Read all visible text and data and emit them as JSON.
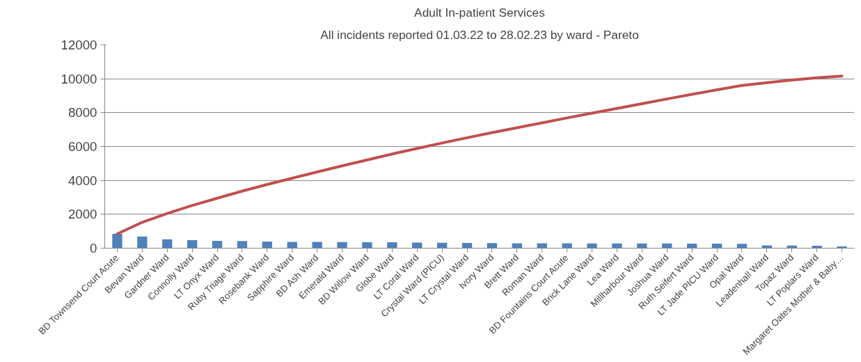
{
  "chart_data": {
    "type": "bar",
    "title": "Adult In-patient Services",
    "subtitle": "All incidents reported 01.03.22 to 28.02.23 by ward - Pareto",
    "categories": [
      "BD Townsend Court Acute",
      "Bevan Ward",
      "Gardner Ward",
      "Connolly Ward",
      "LT Onyx Ward",
      "Ruby Triage Ward",
      "Rosebank Ward",
      "Sapphire Ward",
      "BD Ash Ward",
      "Emerald Ward",
      "BD Willow Ward",
      "Globe Ward",
      "LT Coral Ward",
      "Crystal Ward (PICU)",
      "LT Crystal Ward",
      "Ivory Ward",
      "Brett Ward",
      "Roman Ward",
      "BD Fountains Court Acute",
      "Brick Lane Ward",
      "Lea Ward",
      "Millharbour Ward",
      "Joshua Ward",
      "Ruth Seifert Ward",
      "LT Jade PICU Ward",
      "Opal Ward",
      "Leadenhall Ward",
      "Topaz Ward",
      "LT Poplars Ward",
      "Margaret Oates Mother & Baby…"
    ],
    "series": [
      {
        "color": "#4f81bd",
        "values": [
          840,
          690,
          520,
          470,
          430,
          420,
          390,
          370,
          370,
          360,
          350,
          350,
          330,
          320,
          310,
          300,
          290,
          290,
          290,
          280,
          280,
          280,
          280,
          270,
          270,
          260,
          160,
          150,
          140,
          100
        ]
      },
      {
        "type": "line",
        "color": "#c0504d",
        "values": [
          840,
          1530,
          2050,
          2520,
          2950,
          3370,
          3760,
          4130,
          4500,
          4860,
          5210,
          5560,
          5890,
          6210,
          6520,
          6820,
          7110,
          7400,
          7690,
          7970,
          8250,
          8530,
          8810,
          9080,
          9350,
          9610,
          9770,
          9920,
          10060,
          10160
        ]
      }
    ],
    "ylim": [
      0,
      12000
    ],
    "yticks": [
      0,
      2000,
      4000,
      6000,
      8000,
      10000,
      12000
    ],
    "grid": "y"
  }
}
